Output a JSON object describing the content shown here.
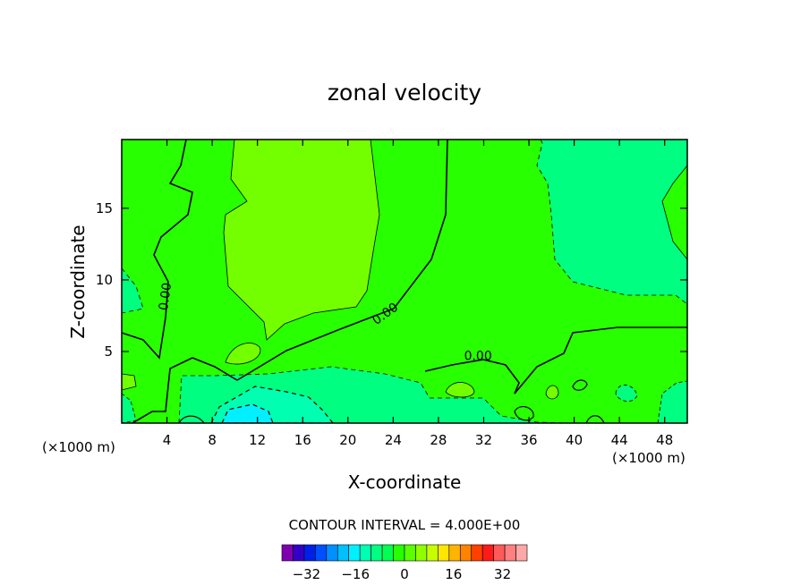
{
  "chart_data": {
    "type": "contour",
    "title": "zonal velocity",
    "xlabel": "X-coordinate",
    "ylabel": "Z-coordinate",
    "x_unit_left": "(×1000 m)",
    "x_unit_right": "(×1000 m)",
    "xlim": [
      0,
      50
    ],
    "ylim": [
      0,
      19.8
    ],
    "x_ticks": [
      "4",
      "8",
      "12",
      "16",
      "20",
      "24",
      "28",
      "32",
      "36",
      "40",
      "44",
      "48"
    ],
    "x_tick_values": [
      4,
      8,
      12,
      16,
      20,
      24,
      28,
      32,
      36,
      40,
      44,
      48
    ],
    "y_ticks": [
      "5",
      "10",
      "15"
    ],
    "y_tick_values": [
      5,
      10,
      15
    ],
    "contour_interval_label": "CONTOUR INTERVAL = 4.000E+00",
    "contour_interval": 4,
    "contour_labels": [
      {
        "text": "0.00",
        "x": 4.2,
        "y": 8.8,
        "angle": -82
      },
      {
        "text": "0.00",
        "x": 23.5,
        "y": 7.4,
        "angle": -35
      },
      {
        "text": "0.00",
        "x": 31.5,
        "y": 4.4,
        "angle": 0
      }
    ],
    "colorbar": {
      "ticks": [
        "-32",
        "-16",
        "0",
        "16",
        "32"
      ],
      "tick_values": [
        -32,
        -16,
        0,
        16,
        32
      ],
      "min": -40,
      "max": 40,
      "colors": [
        "#7f00b0",
        "#3300c8",
        "#0020e8",
        "#0050ff",
        "#0090ff",
        "#00c0ff",
        "#00f0ff",
        "#00ffb0",
        "#00ff80",
        "#00ff50",
        "#28ff00",
        "#5aff00",
        "#90ff00",
        "#c8ff00",
        "#ffe600",
        "#ffb400",
        "#ff8200",
        "#ff4000",
        "#ff1a1a",
        "#ff5a5a",
        "#ff8080",
        "#ffa8a8"
      ]
    },
    "field_colors": {
      "neg8": "#00ff80",
      "neg4": "#00ff50",
      "zero": "#28ff00",
      "pos4": "#5aff00",
      "pos8": "#74ff00",
      "neg12": "#00ffb0",
      "neg16": "#00f0ff"
    }
  }
}
